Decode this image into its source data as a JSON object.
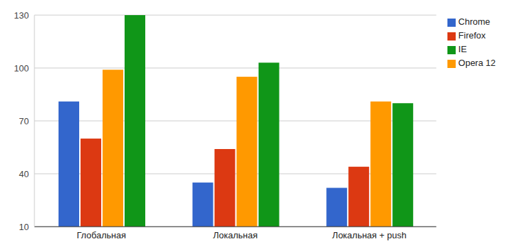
{
  "chart_data": {
    "type": "bar",
    "categories": [
      "Глобальная",
      "Локальная",
      "Локальная + push"
    ],
    "series": [
      {
        "name": "Chrome",
        "color": "#3366cc",
        "values": [
          81,
          35,
          32
        ]
      },
      {
        "name": "Firefox",
        "color": "#dc3912",
        "values": [
          60,
          54,
          44
        ]
      },
      {
        "name": "Opera 12",
        "color": "#ff9900",
        "values": [
          99,
          95,
          81
        ]
      },
      {
        "name": "IE",
        "color": "#109618",
        "values": [
          130,
          103,
          80
        ]
      }
    ],
    "ylim": [
      10,
      130
    ],
    "yticks": [
      10,
      40,
      70,
      100,
      130
    ],
    "grid": true,
    "legend": "right"
  }
}
